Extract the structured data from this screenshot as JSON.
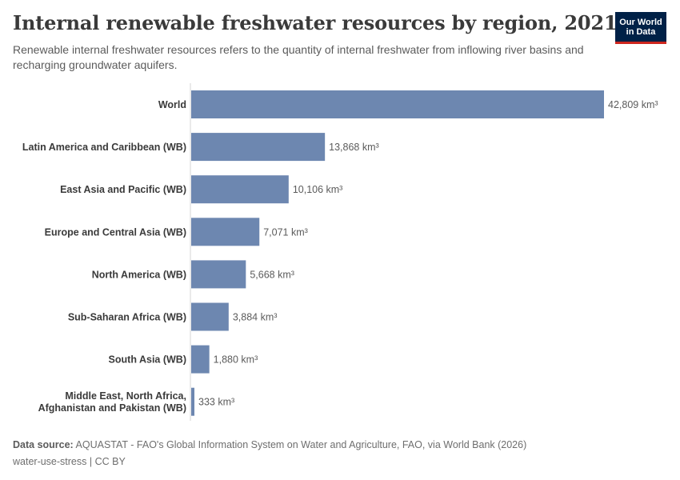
{
  "header": {
    "title": "Internal renewable freshwater resources by region, 2021",
    "subtitle": "Renewable internal freshwater resources refers to the quantity of internal freshwater from inflowing river basins and recharging groundwater aquifers.",
    "logo_line1": "Our World",
    "logo_line2": "in Data"
  },
  "footer": {
    "source_label": "Data source:",
    "source_text": "AQUASTAT - FAO's Global Information System on Water and Agriculture, FAO, via World Bank (2026)",
    "license": "water-use-stress | CC BY"
  },
  "colors": {
    "bar": "#6d87b0",
    "axis": "#d5d5d5",
    "logo_bg": "#002147",
    "logo_accent": "#ce261e"
  },
  "chart_data": {
    "type": "bar",
    "orientation": "horizontal",
    "unit": "km³",
    "categories": [
      [
        "World"
      ],
      [
        "Latin America and Caribbean (WB)"
      ],
      [
        "East Asia and Pacific (WB)"
      ],
      [
        "Europe and Central Asia (WB)"
      ],
      [
        "North America (WB)"
      ],
      [
        "Sub-Saharan Africa (WB)"
      ],
      [
        "South Asia (WB)"
      ],
      [
        "Middle East, North Africa,",
        "Afghanistan and Pakistan (WB)"
      ]
    ],
    "values": [
      42809,
      13868,
      10106,
      7071,
      5668,
      3884,
      1880,
      333
    ],
    "value_labels": [
      "42,809 km³",
      "13,868 km³",
      "10,106 km³",
      "7,071 km³",
      "5,668 km³",
      "3,884 km³",
      "1,880 km³",
      "333 km³"
    ],
    "xlim": [
      0,
      42809
    ]
  }
}
